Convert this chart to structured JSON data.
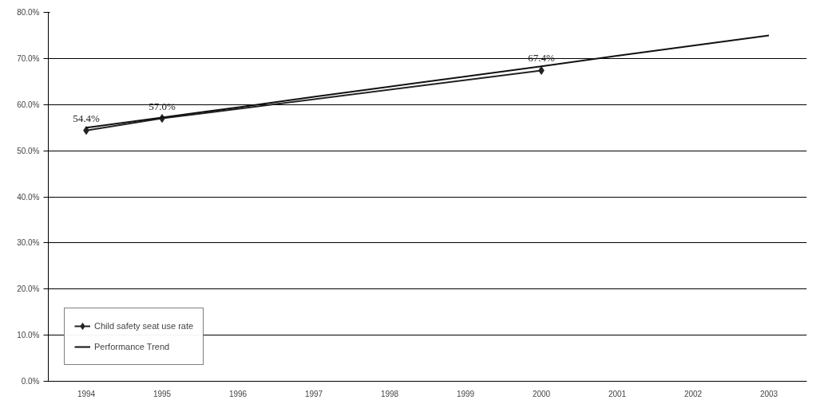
{
  "chart_data": {
    "type": "line",
    "categories": [
      "1994",
      "1995",
      "1996",
      "1997",
      "1998",
      "1999",
      "2000",
      "2001",
      "2002",
      "2003"
    ],
    "series": [
      {
        "name": "Child safety seat use rate",
        "color": "#222222",
        "marker": "diamond",
        "values": [
          54.4,
          57.0,
          null,
          null,
          null,
          null,
          67.4,
          null,
          null,
          null
        ],
        "value_labels": [
          "54.4%",
          "57.0%",
          null,
          null,
          null,
          null,
          "67.4%",
          null,
          null,
          null
        ]
      },
      {
        "name": "Performance Trend",
        "color": "#111111",
        "marker": "none",
        "values": [
          55.0,
          57.2,
          59.4,
          61.7,
          63.9,
          66.1,
          68.3,
          70.6,
          72.8,
          75.0
        ]
      }
    ],
    "ylim": [
      0,
      80
    ],
    "yticks": [
      {
        "value": 0,
        "label": "0.0%"
      },
      {
        "value": 10,
        "label": "10.0%"
      },
      {
        "value": 20,
        "label": "20.0%"
      },
      {
        "value": 30,
        "label": "30.0%"
      },
      {
        "value": 40,
        "label": "40.0%"
      },
      {
        "value": 50,
        "label": "50.0%"
      },
      {
        "value": 60,
        "label": "60.0%"
      },
      {
        "value": 70,
        "label": "70.0%"
      },
      {
        "value": 80,
        "label": "80.0%"
      }
    ],
    "grid": "y",
    "legend": "bottom left",
    "line_style": "solid"
  }
}
